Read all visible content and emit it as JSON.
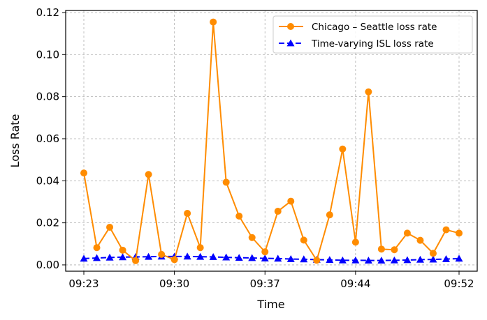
{
  "chart_data": {
    "type": "line",
    "xlabel": "Time",
    "ylabel": "Loss Rate",
    "x_tick_labels": [
      "09:23",
      "09:30",
      "09:37",
      "09:44",
      "09:52"
    ],
    "y_tick_labels": [
      "0.00",
      "0.02",
      "0.04",
      "0.06",
      "0.08",
      "0.10",
      "0.12"
    ],
    "ylim": [
      -0.003,
      0.121
    ],
    "grid": true,
    "legend_position": "top-right",
    "x": [
      "09:23",
      "09:24",
      "09:25",
      "09:26",
      "09:27",
      "09:28",
      "09:29",
      "09:30",
      "09:31",
      "09:32",
      "09:33",
      "09:34",
      "09:35",
      "09:36",
      "09:37",
      "09:38",
      "09:39",
      "09:40",
      "09:41",
      "09:42",
      "09:43",
      "09:44",
      "09:45",
      "09:46",
      "09:47",
      "09:48",
      "09:49",
      "09:50",
      "09:51",
      "09:52"
    ],
    "series": [
      {
        "name": "Chicago – Seattle loss rate",
        "color": "#ff8c00",
        "marker": "circle",
        "line_style": "solid",
        "values": [
          0.0437,
          0.0082,
          0.0179,
          0.007,
          0.002,
          0.043,
          0.005,
          0.0025,
          0.0245,
          0.0082,
          0.1155,
          0.0393,
          0.0232,
          0.013,
          0.0062,
          0.0255,
          0.0303,
          0.0118,
          0.0022,
          0.0238,
          0.0551,
          0.0108,
          0.0823,
          0.0075,
          0.0072,
          0.0151,
          0.0117,
          0.0055,
          0.0167,
          0.0151
        ]
      },
      {
        "name": "Time-varying ISL loss rate",
        "color": "#0000ff",
        "marker": "triangle",
        "line_style": "dashed",
        "values": [
          0.003,
          0.0033,
          0.0035,
          0.0037,
          0.0038,
          0.0039,
          0.004,
          0.004,
          0.004,
          0.0039,
          0.0038,
          0.0036,
          0.0034,
          0.0033,
          0.0031,
          0.003,
          0.0028,
          0.0027,
          0.0025,
          0.0024,
          0.0022,
          0.0022,
          0.0021,
          0.0021,
          0.0022,
          0.0023,
          0.0025,
          0.0026,
          0.0028,
          0.003
        ]
      }
    ]
  }
}
